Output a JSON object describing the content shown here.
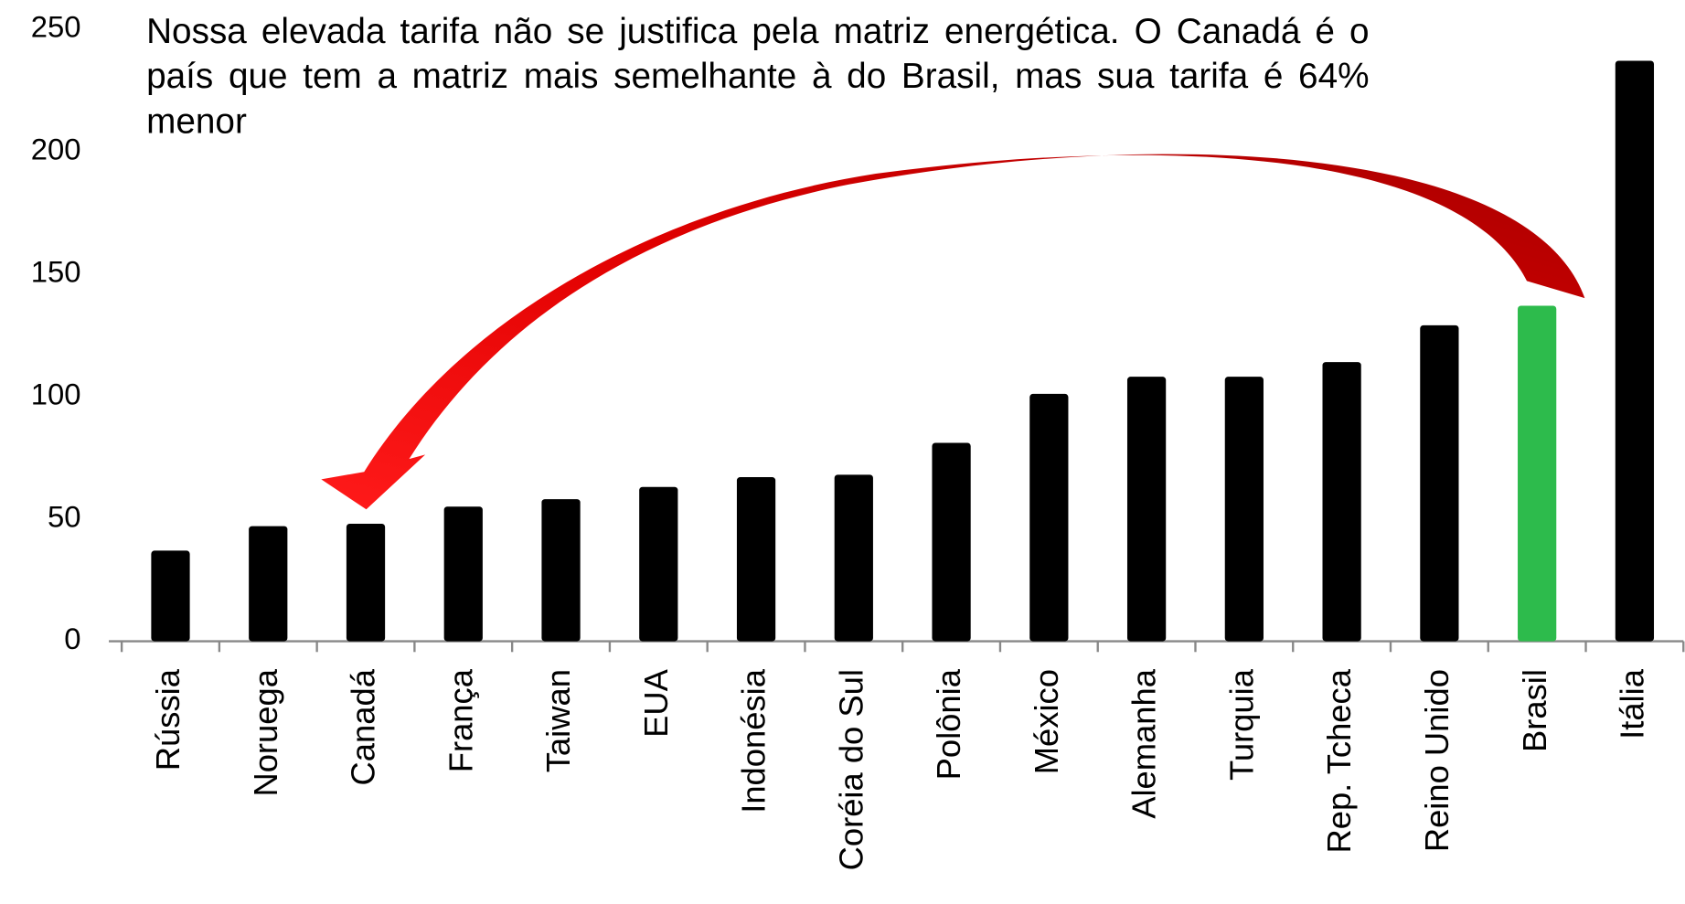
{
  "chart_data": {
    "type": "bar",
    "annotation": "Nossa elevada tarifa não se justifica pela matriz energética. O Canadá é o país que tem a matriz mais semelhante à do Brasil, mas sua tarifa é 64% menor",
    "categories": [
      "Rússia",
      "Noruega",
      "Canadá",
      "França",
      "Taiwan",
      "EUA",
      "Indonésia",
      "Coréia do Sul",
      "Polônia",
      "México",
      "Alemanha",
      "Turquia",
      "Rep. Tcheca",
      "Reino Unido",
      "Brasil",
      "Itália"
    ],
    "values": [
      37,
      47,
      48,
      55,
      58,
      63,
      67,
      68,
      81,
      101,
      108,
      108,
      114,
      129,
      137,
      237
    ],
    "colors": [
      "#000000",
      "#000000",
      "#000000",
      "#000000",
      "#000000",
      "#000000",
      "#000000",
      "#000000",
      "#000000",
      "#000000",
      "#000000",
      "#000000",
      "#000000",
      "#000000",
      "#2dbb4c",
      "#000000"
    ],
    "ylim": [
      0,
      250
    ],
    "yticks": [
      0,
      50,
      100,
      150,
      200,
      250
    ],
    "grid": false
  }
}
